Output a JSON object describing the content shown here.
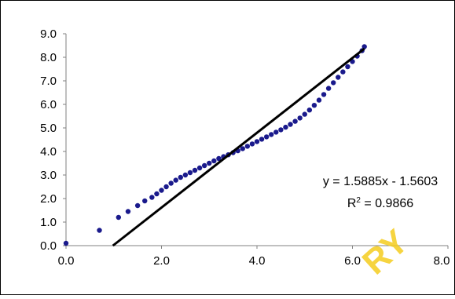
{
  "chart_data": {
    "type": "scatter",
    "title": "",
    "xlabel": "",
    "ylabel": "",
    "xlim": [
      0,
      8
    ],
    "ylim": [
      0,
      9
    ],
    "x_ticks": [
      "0.0",
      "2.0",
      "4.0",
      "6.0",
      "8.0"
    ],
    "y_ticks": [
      "0.0",
      "1.0",
      "2.0",
      "3.0",
      "4.0",
      "5.0",
      "6.0",
      "7.0",
      "8.0",
      "9.0"
    ],
    "grid": false,
    "legend": "none",
    "series": [
      {
        "color": "#1a1a8c",
        "points": [
          [
            0.0,
            0.1
          ],
          [
            0.7,
            0.65
          ],
          [
            1.1,
            1.2
          ],
          [
            1.3,
            1.45
          ],
          [
            1.5,
            1.7
          ],
          [
            1.65,
            1.9
          ],
          [
            1.8,
            2.05
          ],
          [
            1.9,
            2.2
          ],
          [
            2.0,
            2.35
          ],
          [
            2.1,
            2.5
          ],
          [
            2.2,
            2.65
          ],
          [
            2.3,
            2.78
          ],
          [
            2.4,
            2.9
          ],
          [
            2.5,
            3.0
          ],
          [
            2.6,
            3.1
          ],
          [
            2.7,
            3.2
          ],
          [
            2.8,
            3.3
          ],
          [
            2.9,
            3.4
          ],
          [
            3.0,
            3.5
          ],
          [
            3.1,
            3.6
          ],
          [
            3.2,
            3.7
          ],
          [
            3.3,
            3.78
          ],
          [
            3.4,
            3.86
          ],
          [
            3.5,
            3.95
          ],
          [
            3.6,
            4.03
          ],
          [
            3.7,
            4.12
          ],
          [
            3.8,
            4.22
          ],
          [
            3.9,
            4.32
          ],
          [
            4.0,
            4.42
          ],
          [
            4.1,
            4.52
          ],
          [
            4.2,
            4.62
          ],
          [
            4.3,
            4.72
          ],
          [
            4.4,
            4.82
          ],
          [
            4.5,
            4.92
          ],
          [
            4.6,
            5.03
          ],
          [
            4.7,
            5.15
          ],
          [
            4.8,
            5.28
          ],
          [
            4.9,
            5.42
          ],
          [
            5.0,
            5.58
          ],
          [
            5.1,
            5.76
          ],
          [
            5.2,
            5.96
          ],
          [
            5.3,
            6.18
          ],
          [
            5.4,
            6.42
          ],
          [
            5.5,
            6.68
          ],
          [
            5.6,
            6.92
          ],
          [
            5.7,
            7.15
          ],
          [
            5.8,
            7.38
          ],
          [
            5.9,
            7.6
          ],
          [
            6.0,
            7.82
          ],
          [
            6.1,
            8.05
          ],
          [
            6.2,
            8.28
          ],
          [
            6.25,
            8.45
          ]
        ]
      }
    ],
    "trendline": {
      "slope": 1.5885,
      "intercept": -1.5603,
      "color": "#000000",
      "equation_label": "y = 1.5885x - 1.5603",
      "r2_label_prefix": "R",
      "r2_label_sup": "2",
      "r2_label_value": " = 0.9866"
    }
  },
  "watermark": {
    "text": "RY",
    "color": "#f5cc1f"
  }
}
